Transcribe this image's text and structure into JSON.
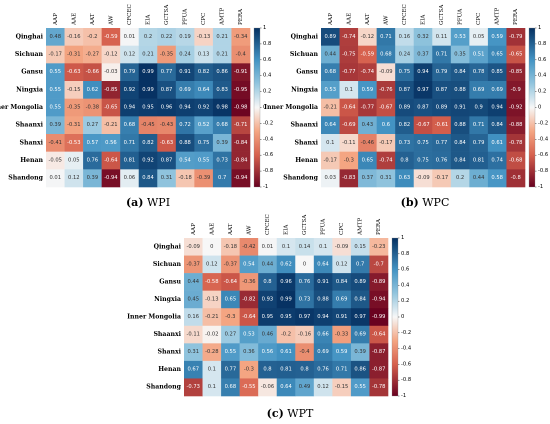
{
  "chart_data": [
    {
      "type": "heatmap",
      "caption_letter": "(a)",
      "caption_name": "WPI",
      "rows": [
        "Qinghai",
        "Sichuan",
        "Gansu",
        "Ningxia",
        "Inner Mongolia",
        "Shaanxi",
        "Shanxi",
        "Henan",
        "Shandong"
      ],
      "columns": [
        "AAP",
        "AAE",
        "AAT",
        "AW",
        "CFCEC",
        "EIA",
        "GCTSA",
        "PFUA",
        "CPC",
        "AMTP",
        "PERA"
      ],
      "values": [
        [
          0.48,
          -0.16,
          -0.2,
          -0.59,
          0.01,
          0.2,
          0.22,
          0.19,
          -0.13,
          0.21,
          -0.34
        ],
        [
          -0.17,
          -0.31,
          -0.27,
          -0.12,
          0.12,
          0.21,
          -0.35,
          0.24,
          0.13,
          0.21,
          -0.4
        ],
        [
          0.55,
          -0.63,
          -0.66,
          -0.03,
          0.79,
          0.99,
          0.77,
          0.91,
          0.82,
          0.86,
          -0.91
        ],
        [
          0.55,
          -0.15,
          0.62,
          -0.85,
          0.92,
          0.99,
          0.87,
          0.69,
          0.64,
          0.83,
          -0.95
        ],
        [
          0.55,
          -0.35,
          -0.38,
          -0.65,
          0.94,
          0.95,
          0.96,
          0.94,
          0.92,
          0.98,
          -0.98
        ],
        [
          0.39,
          -0.31,
          0.27,
          -0.21,
          0.68,
          -0.45,
          -0.43,
          0.72,
          0.52,
          0.68,
          -0.71
        ],
        [
          -0.41,
          -0.53,
          0.57,
          0.56,
          0.71,
          0.82,
          -0.63,
          0.88,
          0.75,
          0.39,
          -0.84
        ],
        [
          -0.05,
          0.05,
          0.76,
          -0.64,
          0.81,
          0.92,
          0.87,
          0.54,
          0.55,
          0.73,
          -0.84
        ],
        [
          0.01,
          0.12,
          0.39,
          -0.94,
          0.06,
          0.84,
          0.31,
          -0.18,
          -0.39,
          0.7,
          -0.94
        ]
      ],
      "colorbar_ticks": [
        1,
        0.8,
        0.6,
        0.4,
        0.2,
        0,
        -0.2,
        -0.4,
        -0.6,
        -0.8,
        -1
      ],
      "vmin": -1,
      "vmax": 1
    },
    {
      "type": "heatmap",
      "caption_letter": "(b)",
      "caption_name": "WPC",
      "rows": [
        "Qinghai",
        "Sichuan",
        "Gansu",
        "Ningxia",
        "Inner Mongolia",
        "Shaanxi",
        "Shanxi",
        "Henan",
        "Shandong"
      ],
      "columns": [
        "AAP",
        "AAE",
        "AAT",
        "AW",
        "CFCEC",
        "EIA",
        "GCTSA",
        "PFUA",
        "CPC",
        "AMTP",
        "PERA"
      ],
      "values": [
        [
          0.89,
          -0.74,
          -0.12,
          0.71,
          0.16,
          0.32,
          0.11,
          0.53,
          0.05,
          0.59,
          -0.79
        ],
        [
          0.44,
          -0.75,
          -0.59,
          0.68,
          0.24,
          0.37,
          0.71,
          0.35,
          0.51,
          0.65,
          -0.65
        ],
        [
          0.68,
          -0.77,
          -0.74,
          -0.09,
          0.75,
          0.94,
          0.79,
          0.84,
          0.78,
          0.85,
          -0.85
        ],
        [
          0.53,
          0.1,
          0.59,
          -0.76,
          0.87,
          0.97,
          0.87,
          0.88,
          0.69,
          0.69,
          -0.9
        ],
        [
          -0.21,
          -0.64,
          -0.77,
          -0.67,
          0.89,
          0.87,
          0.89,
          0.91,
          0.9,
          0.94,
          -0.92
        ],
        [
          0.64,
          -0.69,
          0.43,
          0.6,
          0.82,
          -0.67,
          -0.61,
          0.88,
          0.71,
          0.84,
          -0.88
        ],
        [
          0.1,
          -0.11,
          -0.46,
          -0.17,
          0.73,
          0.75,
          0.77,
          0.84,
          0.79,
          0.61,
          -0.78
        ],
        [
          -0.17,
          -0.3,
          0.65,
          -0.74,
          0.8,
          0.75,
          0.76,
          0.84,
          0.81,
          0.74,
          -0.68
        ],
        [
          0.03,
          -0.83,
          0.37,
          0.31,
          0.63,
          -0.09,
          -0.17,
          0.2,
          0.44,
          0.58,
          -0.8
        ]
      ],
      "colorbar_ticks": [
        1,
        0.8,
        0.6,
        0.4,
        0.2,
        0,
        -0.2,
        -0.4,
        -0.6,
        -0.8,
        -1
      ],
      "vmin": -1,
      "vmax": 1
    },
    {
      "type": "heatmap",
      "caption_letter": "(c)",
      "caption_name": "WPT",
      "rows": [
        "Qinghai",
        "Sichuan",
        "Gansu",
        "Ningxia",
        "Inner Mongolia",
        "Shaanxi",
        "Shanxi",
        "Henan",
        "Shandong"
      ],
      "columns": [
        "AAP",
        "AAE",
        "AAT",
        "AW",
        "CFCEC",
        "EIA",
        "GCTSA",
        "PFUA",
        "CPC",
        "AMTP",
        "PERA"
      ],
      "values": [
        [
          -0.09,
          0,
          -0.18,
          -0.42,
          0.01,
          0.1,
          0.14,
          0.1,
          -0.09,
          0.15,
          -0.23
        ],
        [
          -0.37,
          0.12,
          -0.37,
          0.54,
          0.44,
          0.62,
          0,
          0.64,
          0.12,
          0.7,
          -0.7
        ],
        [
          0.44,
          -0.58,
          -0.64,
          -0.36,
          0.8,
          0.96,
          0.76,
          0.91,
          0.84,
          0.89,
          -0.89
        ],
        [
          0.45,
          -0.13,
          0.65,
          -0.82,
          0.93,
          0.99,
          0.73,
          0.88,
          0.69,
          0.84,
          -0.94
        ],
        [
          0.16,
          -0.21,
          -0.3,
          -0.64,
          0.95,
          0.95,
          0.97,
          0.94,
          0.91,
          0.97,
          -0.99
        ],
        [
          -0.11,
          -0.02,
          0.27,
          0.53,
          0.46,
          -0.2,
          -0.16,
          0.66,
          -0.33,
          0.69,
          -0.64
        ],
        [
          0.31,
          -0.28,
          0.55,
          0.36,
          0.56,
          0.61,
          -0.4,
          0.69,
          0.59,
          0.39,
          -0.87
        ],
        [
          0.67,
          0.1,
          0.77,
          -0.3,
          0.8,
          0.81,
          0.8,
          0.76,
          0.71,
          0.86,
          -0.87
        ],
        [
          -0.73,
          0.1,
          0.68,
          -0.55,
          -0.06,
          0.64,
          0.49,
          0.12,
          -0.15,
          0.55,
          -0.78
        ]
      ],
      "colorbar_ticks": [
        1,
        0.8,
        0.6,
        0.4,
        0.2,
        0,
        -0.2,
        -0.4,
        -0.6,
        -0.8,
        -1
      ],
      "vmin": -1,
      "vmax": 1
    }
  ]
}
